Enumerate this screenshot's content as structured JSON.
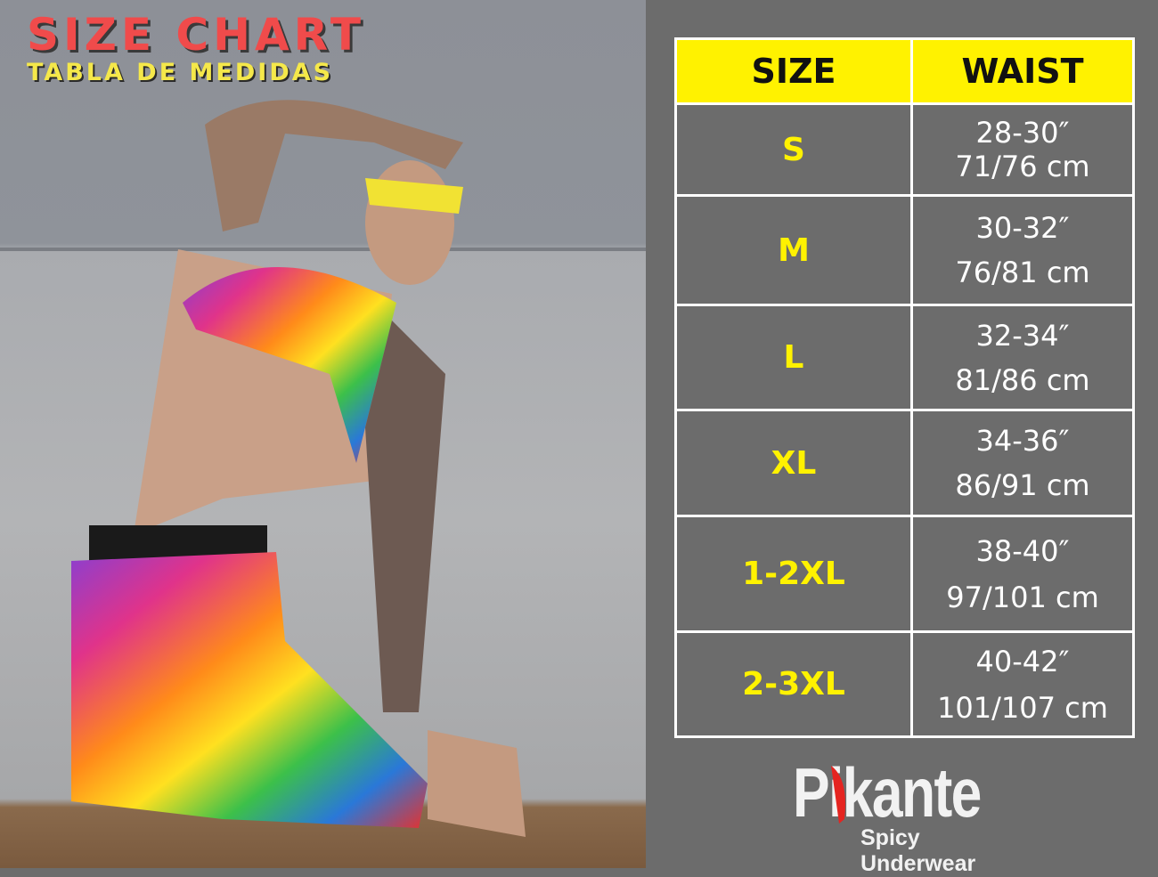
{
  "header": {
    "title": "SIZE CHART",
    "subtitle": "TABLA DE MEDIDAS"
  },
  "table": {
    "columns": [
      "SIZE",
      "WAIST"
    ],
    "rows": [
      {
        "size": "S",
        "inches": "28-30″",
        "cm": "71/76 cm"
      },
      {
        "size": "M",
        "inches": "30-32″",
        "cm": "76/81 cm"
      },
      {
        "size": "L",
        "inches": "32-34″",
        "cm": "81/86 cm"
      },
      {
        "size": "XL",
        "inches": "34-36″",
        "cm": "86/91 cm"
      },
      {
        "size": "1-2XL",
        "inches": "38-40″",
        "cm": "97/101 cm"
      },
      {
        "size": "2-3XL",
        "inches": "40-42″",
        "cm": "101/107 cm"
      }
    ]
  },
  "brand": {
    "name": "Pikante",
    "tagline": "Spicy Underwear"
  },
  "colors": {
    "header_bg": "#fff200",
    "size_text": "#fff200",
    "title": "#f04b4b",
    "subtitle": "#f5e84a",
    "panel_bg": "#6c6c6c"
  }
}
